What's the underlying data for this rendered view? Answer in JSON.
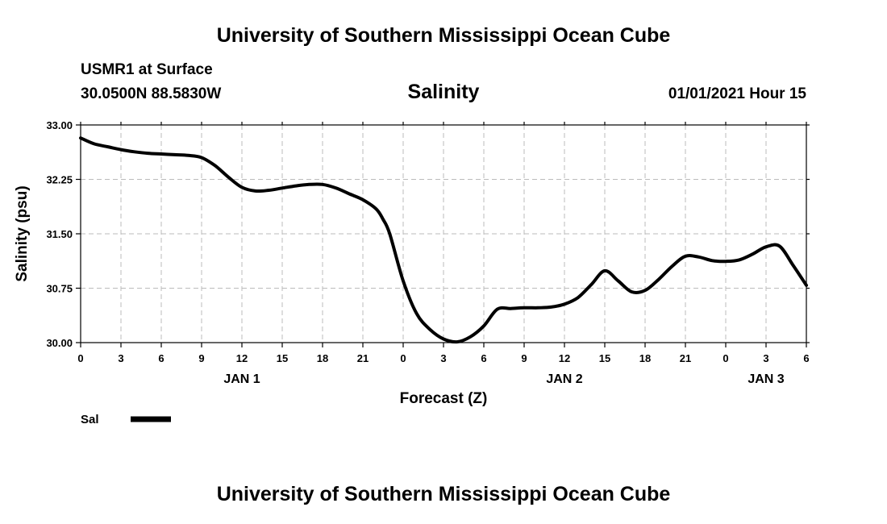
{
  "header": {
    "title": "University of Southern Mississippi Ocean Cube",
    "station": "USMR1 at Surface",
    "coords": "30.0500N 88.5830W",
    "parameter": "Salinity",
    "datetime": "01/01/2021 Hour 15"
  },
  "footer": {
    "title": "University of Southern Mississippi Ocean Cube"
  },
  "chart_data": {
    "type": "line",
    "title": "Salinity",
    "xlabel": "Forecast (Z)",
    "ylabel": "Salinity (psu)",
    "ylim": [
      30.0,
      33.0
    ],
    "y_ticks": [
      "30.00",
      "30.75",
      "31.50",
      "32.25",
      "33.00"
    ],
    "x_tick_labels": [
      "0",
      "3",
      "6",
      "9",
      "12",
      "15",
      "18",
      "21",
      "0",
      "3",
      "6",
      "9",
      "12",
      "15",
      "18",
      "21",
      "0",
      "3",
      "6"
    ],
    "date_labels": [
      {
        "label": "JAN 1",
        "hour": 12
      },
      {
        "label": "JAN 2",
        "hour": 36
      },
      {
        "label": "JAN 3",
        "hour": 51
      }
    ],
    "grid": true,
    "legend_position": "bottom-left",
    "series": [
      {
        "name": "Sal",
        "color": "#000000",
        "x": [
          0,
          1,
          2,
          3,
          4,
          5,
          6,
          7,
          8,
          9,
          10,
          11,
          12,
          13,
          14,
          15,
          16,
          17,
          18,
          19,
          20,
          21,
          22,
          22.5,
          23,
          24,
          25,
          26,
          27,
          28,
          29,
          30,
          31,
          32,
          33,
          34,
          35,
          36,
          37,
          38,
          39,
          40,
          41,
          42,
          43,
          44,
          45,
          46,
          47,
          48,
          49,
          50,
          51,
          52,
          53,
          54
        ],
        "values": [
          32.82,
          32.74,
          32.7,
          32.66,
          32.63,
          32.61,
          32.6,
          32.59,
          32.58,
          32.55,
          32.44,
          32.28,
          32.14,
          32.09,
          32.1,
          32.13,
          32.16,
          32.18,
          32.18,
          32.13,
          32.05,
          31.97,
          31.84,
          31.7,
          31.5,
          30.85,
          30.4,
          30.18,
          30.05,
          30.01,
          30.08,
          30.23,
          30.46,
          30.47,
          30.48,
          30.48,
          30.49,
          30.53,
          30.62,
          30.8,
          30.99,
          30.85,
          30.7,
          30.72,
          30.87,
          31.05,
          31.19,
          31.18,
          31.13,
          31.12,
          31.14,
          31.22,
          31.32,
          31.33,
          31.07,
          30.79
        ]
      }
    ]
  }
}
